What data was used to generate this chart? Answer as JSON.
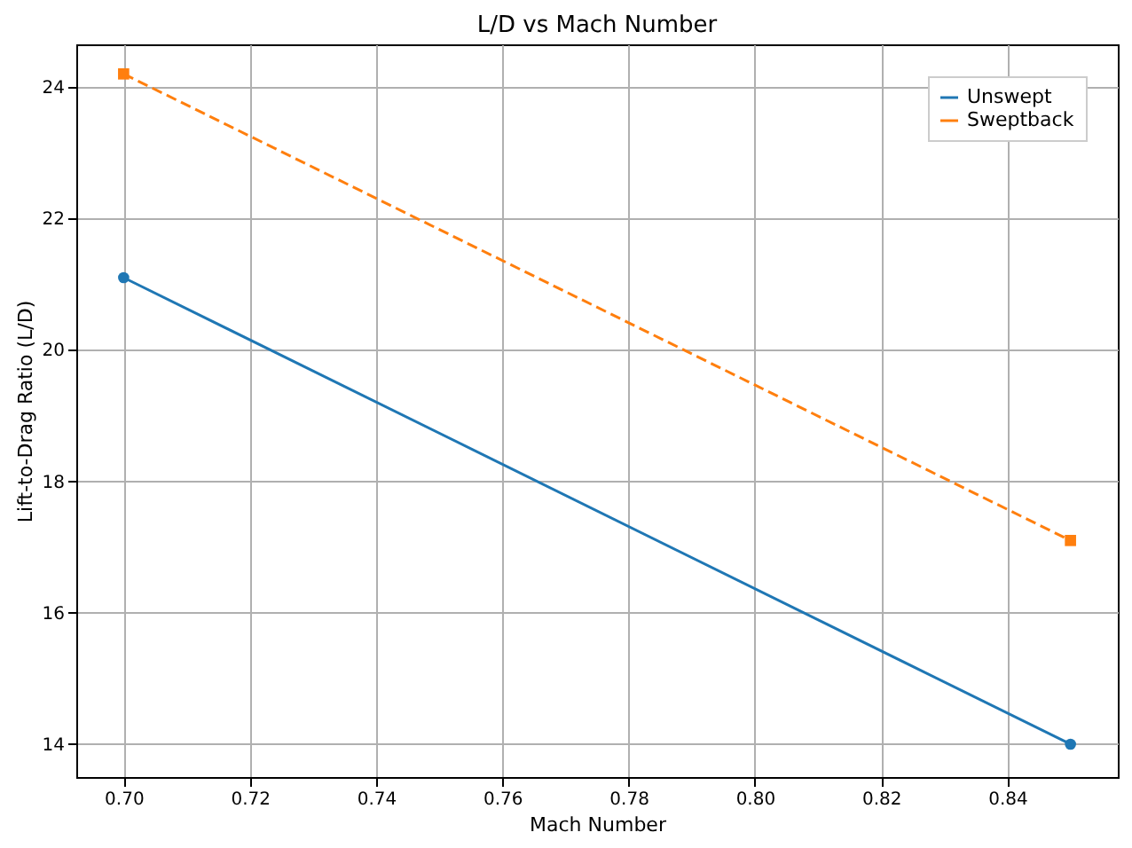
{
  "chart_data": {
    "type": "line",
    "title": "L/D vs Mach Number",
    "xlabel": "Mach Number",
    "ylabel": "Lift-to-Drag Ratio (L/D)",
    "x": [
      0.7,
      0.85
    ],
    "series": [
      {
        "name": "Unswept",
        "color": "#1f77b4",
        "values": [
          21.1,
          14.0
        ],
        "marker": "circle",
        "line_style": "solid"
      },
      {
        "name": "Sweptback",
        "color": "#ff7f0e",
        "values": [
          24.2,
          17.1
        ],
        "marker": "square",
        "line_style": "dashed"
      }
    ],
    "xlim": [
      0.6925,
      0.8575
    ],
    "ylim": [
      13.5,
      24.65
    ],
    "xticks": [
      {
        "value": 0.7,
        "label": "0.70"
      },
      0.72,
      0.74,
      0.76,
      0.78,
      {
        "value": 0.8,
        "label": "0.80"
      },
      0.82,
      0.84
    ],
    "yticks": [
      14,
      16,
      18,
      20,
      22,
      24
    ],
    "grid": true,
    "legend": "top right"
  }
}
